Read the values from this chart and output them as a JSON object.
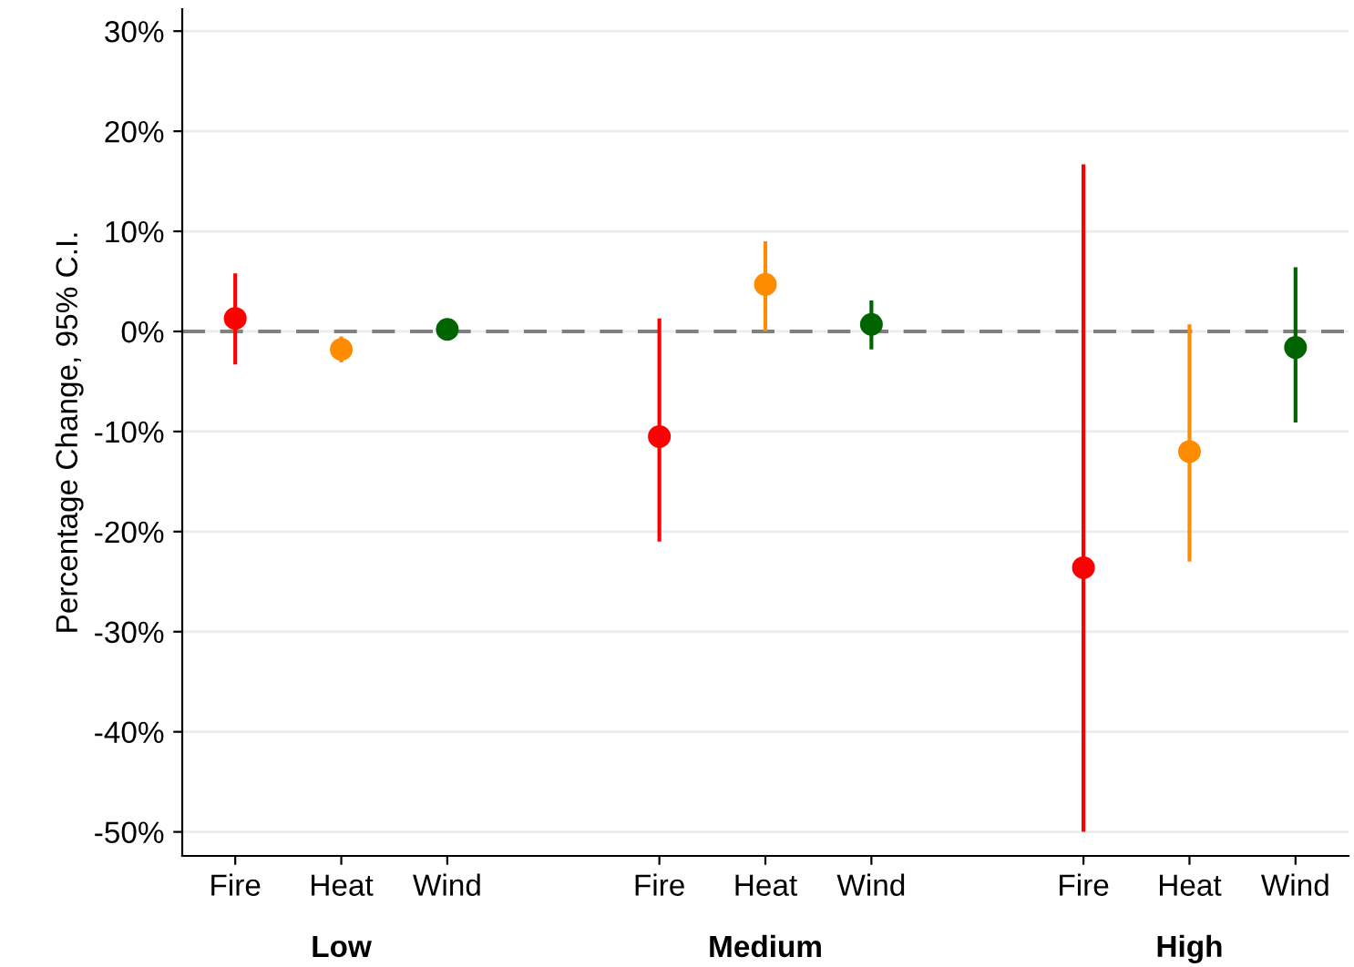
{
  "chart_data": {
    "type": "scatter",
    "ylabel": "Percentage Change, 95% C.I.",
    "categories": [
      "Fire",
      "Heat",
      "Wind",
      null,
      "Fire",
      "Heat",
      "Wind",
      null,
      "Fire",
      "Heat",
      "Wind"
    ],
    "values": [
      1.3,
      -1.8,
      0.2,
      null,
      -10.5,
      4.7,
      0.7,
      null,
      -23.6,
      -12,
      -1.6
    ],
    "errors": [
      [
        -3.3,
        5.8
      ],
      [
        -3.1,
        -0.5
      ],
      [
        -0.2,
        0.5
      ],
      null,
      [
        -21,
        1.3
      ],
      [
        0,
        9
      ],
      [
        -1.8,
        3.1
      ],
      null,
      [
        -50,
        16.7
      ],
      [
        -23,
        0.7
      ],
      [
        -9.1,
        6.4
      ]
    ],
    "colors": [
      "#ff0000",
      "#ff8c00",
      "#006400",
      null,
      "#ff0000",
      "#ff8c00",
      "#006400",
      null,
      "#ff0000",
      "#ff8c00",
      "#006400"
    ],
    "marker": "circle",
    "ylim": [
      -52.4,
      32.2
    ],
    "yticks": [
      {
        "value": -50,
        "label": "-50%"
      },
      {
        "value": -40,
        "label": "-40%"
      },
      {
        "value": -30,
        "label": "-30%"
      },
      {
        "value": -20,
        "label": "-20%"
      },
      {
        "value": -10,
        "label": "-10%"
      },
      {
        "value": 0,
        "label": "0%"
      },
      {
        "value": 10,
        "label": "10%"
      },
      {
        "value": 20,
        "label": "20%"
      },
      {
        "value": 30,
        "label": "30%"
      }
    ],
    "grid": "y",
    "ref_lines": [
      {
        "axis": "y",
        "value": 0,
        "color": "#808080",
        "line_style": "dashed"
      }
    ],
    "annotations": [
      "Low",
      "Medium",
      "High"
    ]
  }
}
